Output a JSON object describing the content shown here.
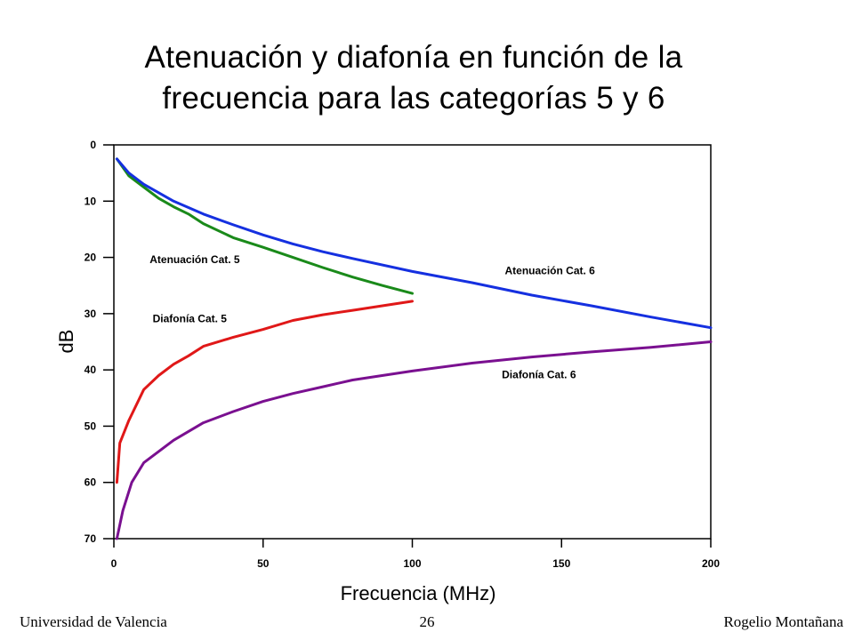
{
  "slide": {
    "title_line1": "Atenuación y diafonía en función de la",
    "title_line2": "frecuencia para las categorías 5 y 6",
    "footer_left": "Universidad de Valencia",
    "footer_page": "26",
    "footer_right": "Rogelio Montañana"
  },
  "chart_data": {
    "type": "line",
    "title": "Atenuación y diafonía en función de la frecuencia para las categorías 5 y 6",
    "xlabel": "Frecuencia (MHz)",
    "ylabel": "dB",
    "xlim": [
      0,
      200
    ],
    "ylim": [
      0,
      70
    ],
    "y_inverted": true,
    "grid": false,
    "x_ticks": [
      0,
      50,
      100,
      150,
      200
    ],
    "x_tick_labels": [
      "0",
      "50",
      "100",
      "150",
      "200"
    ],
    "y_ticks": [
      0,
      10,
      20,
      30,
      40,
      50,
      60,
      70
    ],
    "y_tick_labels": [
      "0",
      "10",
      "20",
      "30",
      "40",
      "50",
      "60",
      "70"
    ],
    "series": [
      {
        "name": "Atenuación Cat. 5",
        "color": "#1a8a1a",
        "points": [
          [
            1,
            2.5
          ],
          [
            5,
            5.5
          ],
          [
            10,
            7.5
          ],
          [
            15,
            9.5
          ],
          [
            20,
            11
          ],
          [
            25,
            12.3
          ],
          [
            30,
            14
          ],
          [
            40,
            16.5
          ],
          [
            50,
            18.2
          ],
          [
            60,
            20
          ],
          [
            70,
            21.8
          ],
          [
            80,
            23.5
          ],
          [
            90,
            25
          ],
          [
            100,
            26.4
          ]
        ]
      },
      {
        "name": "Atenuación Cat. 6",
        "color": "#1530e0",
        "points": [
          [
            1,
            2.5
          ],
          [
            5,
            5
          ],
          [
            10,
            7
          ],
          [
            20,
            10
          ],
          [
            30,
            12.3
          ],
          [
            40,
            14.2
          ],
          [
            50,
            16
          ],
          [
            60,
            17.6
          ],
          [
            70,
            19
          ],
          [
            80,
            20.2
          ],
          [
            100,
            22.5
          ],
          [
            120,
            24.5
          ],
          [
            140,
            26.7
          ],
          [
            160,
            28.6
          ],
          [
            180,
            30.6
          ],
          [
            200,
            32.5
          ]
        ]
      },
      {
        "name": "Diafonía Cat. 5",
        "color": "#e01818",
        "points": [
          [
            1,
            60
          ],
          [
            2,
            53
          ],
          [
            5,
            49
          ],
          [
            10,
            43.5
          ],
          [
            15,
            41
          ],
          [
            20,
            39
          ],
          [
            25,
            37.5
          ],
          [
            30,
            35.8
          ],
          [
            40,
            34.2
          ],
          [
            50,
            32.8
          ],
          [
            60,
            31.2
          ],
          [
            70,
            30.2
          ],
          [
            80,
            29.4
          ],
          [
            90,
            28.6
          ],
          [
            100,
            27.8
          ]
        ]
      },
      {
        "name": "Diafonía Cat. 6",
        "color": "#7a1090",
        "points": [
          [
            1,
            70
          ],
          [
            3,
            65
          ],
          [
            6,
            60
          ],
          [
            10,
            56.5
          ],
          [
            20,
            52.5
          ],
          [
            30,
            49.4
          ],
          [
            40,
            47.4
          ],
          [
            50,
            45.6
          ],
          [
            60,
            44.2
          ],
          [
            70,
            43
          ],
          [
            80,
            41.8
          ],
          [
            100,
            40.2
          ],
          [
            120,
            38.8
          ],
          [
            140,
            37.7
          ],
          [
            160,
            36.8
          ],
          [
            180,
            36
          ],
          [
            200,
            35
          ]
        ]
      }
    ],
    "annotations": [
      {
        "text": "Atenuación Cat. 5",
        "x": 12,
        "y": 21
      },
      {
        "text": "Atenuación Cat. 6",
        "x": 131,
        "y": 23
      },
      {
        "text": "Diafonía Cat. 5",
        "x": 13,
        "y": 31.5
      },
      {
        "text": "Diafonía Cat. 6",
        "x": 130,
        "y": 41.5
      }
    ]
  }
}
